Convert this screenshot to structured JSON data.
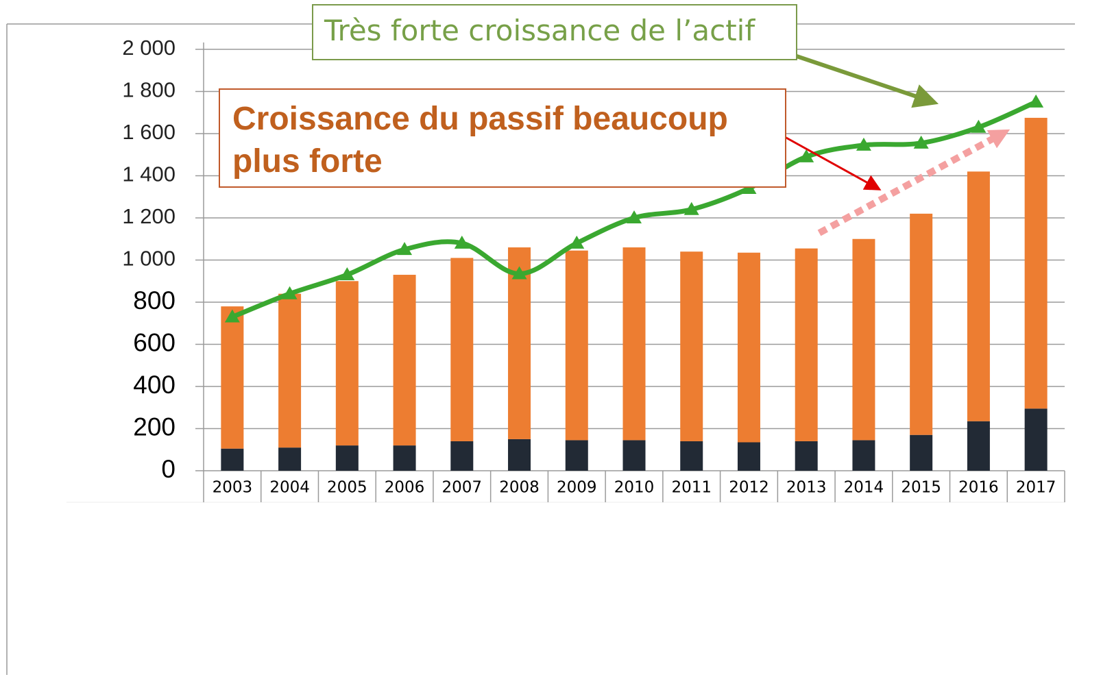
{
  "chart_data": {
    "type": "bar",
    "stacked": true,
    "categories": [
      "2003",
      "2004",
      "2005",
      "2006",
      "2007",
      "2008",
      "2009",
      "2010",
      "2011",
      "2012",
      "2013",
      "2014",
      "2015",
      "2016",
      "2017"
    ],
    "series": [
      {
        "color": "#222a35",
        "values": [
          105,
          110,
          120,
          120,
          140,
          150,
          145,
          145,
          140,
          135,
          140,
          145,
          170,
          235,
          295
        ]
      },
      {
        "color": "#ed7d31",
        "values": [
          675,
          730,
          780,
          810,
          870,
          910,
          900,
          915,
          900,
          900,
          915,
          955,
          1050,
          1185,
          1380
        ]
      },
      {
        "type": "line",
        "smooth": true,
        "color": "#3aa830",
        "values": [
          730,
          840,
          930,
          1050,
          1080,
          935,
          1080,
          1200,
          1240,
          1340,
          1490,
          1545,
          1555,
          1630,
          1750
        ]
      }
    ],
    "ylim": [
      0,
      2000
    ],
    "yticks": [
      0,
      200,
      400,
      600,
      800,
      {
        "value": 1000,
        "label": "1 000"
      },
      {
        "value": 1200,
        "label": "1 200"
      },
      {
        "value": 1400,
        "label": "1 400"
      },
      {
        "value": 1600,
        "label": "1 600"
      },
      {
        "value": 1800,
        "label": "1 800"
      },
      {
        "value": 2000,
        "label": "2 000"
      }
    ],
    "grid": true,
    "annotations": [
      "Très forte croissance de l’actif",
      "Croissance du passif beaucoup plus forte"
    ]
  }
}
